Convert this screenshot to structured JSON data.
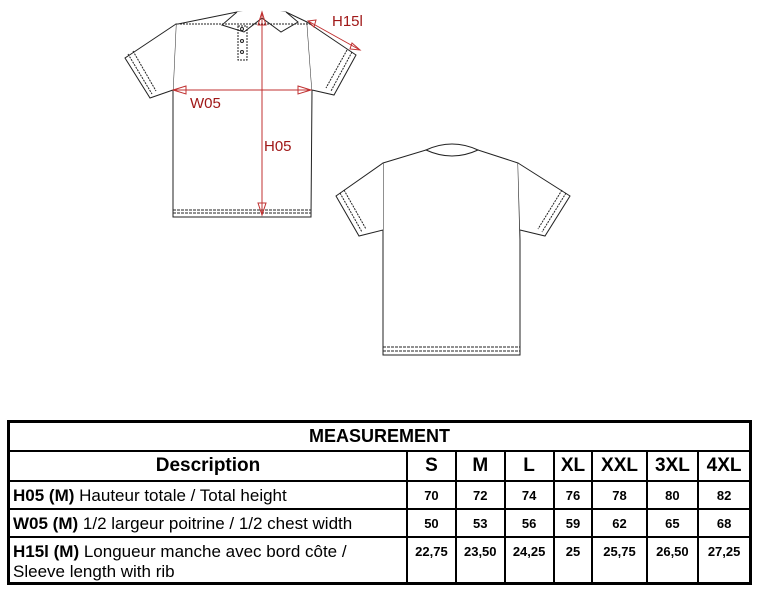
{
  "diagram": {
    "labels": {
      "h05": "H05",
      "w05": "W05",
      "h15l": "H15l"
    },
    "measure_color": "#b02020"
  },
  "table": {
    "title": "MEASUREMENT",
    "description_header": "Description",
    "sizes": [
      "S",
      "M",
      "L",
      "XL",
      "XXL",
      "3XL",
      "4XL"
    ],
    "rows": [
      {
        "code": "H05 (M)",
        "text": " Hauteur totale / Total height",
        "values": [
          "70",
          "72",
          "74",
          "76",
          "78",
          "80",
          "82"
        ]
      },
      {
        "code": "W05 (M)",
        "text": " 1/2 largeur poitrine / 1/2 chest width",
        "values": [
          "50",
          "53",
          "56",
          "59",
          "62",
          "65",
          "68"
        ]
      },
      {
        "code": "H15l (M)",
        "text": " Longueur manche avec bord côte / Sleeve length with rib",
        "values": [
          "22,75",
          "23,50",
          "24,25",
          "25",
          "25,75",
          "26,50",
          "27,25"
        ]
      }
    ]
  }
}
